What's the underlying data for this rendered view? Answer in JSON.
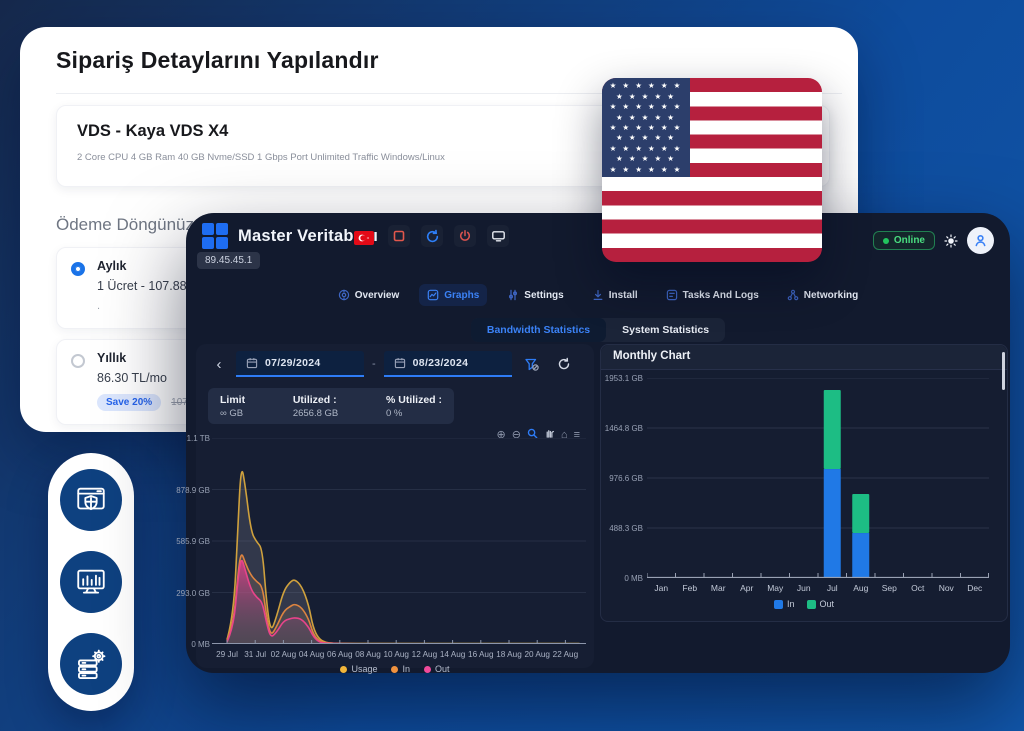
{
  "colors": {
    "accent_blue": "#2e7cf6",
    "active_tab_blue": "#3b82f6",
    "online_green": "#22c55e",
    "bar_in_blue": "#2079e6",
    "bar_out_green": "#1dbd84",
    "usage_yellow": "#f2b63a",
    "in_orange": "#f0923f",
    "out_pink": "#f04a9b"
  },
  "order_card": {
    "title": "Sipariş Detaylarını Yapılandır",
    "product_name": "VDS - Kaya VDS X4",
    "product_specs": "2 Core CPU 4 GB Ram 40 GB Nvme/SSD 1 Gbps Port Unlimited Traffic Windows/Linux",
    "billing_heading": "Ödeme Döngünüz",
    "options": [
      {
        "label": "Aylık",
        "price": "1 Ücret - 107.88 TL",
        "note": ".",
        "selected": true
      },
      {
        "label": "Yıllık",
        "price": "86.30 TL/mo",
        "badge": "Save 20%",
        "old_price": "107.88",
        "selected": false
      }
    ]
  },
  "dashboard": {
    "window_title": "Master Veritabanı",
    "ip_address": "89.45.45.1",
    "status_label": "Online",
    "nav_tabs": [
      {
        "label": "Overview",
        "icon": "overview",
        "active": false
      },
      {
        "label": "Graphs",
        "icon": "graphs",
        "active": true
      },
      {
        "label": "Settings",
        "icon": "settings",
        "active": false
      },
      {
        "label": "Install",
        "icon": "install",
        "active": false
      },
      {
        "label": "Tasks And Logs",
        "icon": "tasks",
        "active": false
      },
      {
        "label": "Networking",
        "icon": "networking",
        "active": false
      }
    ],
    "sub_tabs": [
      {
        "label": "Bandwidth Statistics",
        "active": true
      },
      {
        "label": "System Statistics",
        "active": false
      }
    ],
    "date_filter": {
      "from": "07/29/2024",
      "to": "08/23/2024",
      "separator": "-"
    },
    "usage_summary": [
      {
        "label": "Limit",
        "value": "∞ GB"
      },
      {
        "label": "Utilized :",
        "value": "2656.8 GB"
      },
      {
        "label": "% Utilized :",
        "value": "0 %"
      }
    ],
    "glyphs": {
      "chevron_left": "‹",
      "zoom_in": "⊕",
      "zoom_out": "⊖",
      "home": "⌂",
      "menu": "≡"
    }
  },
  "chart_data": [
    {
      "id": "bandwidth",
      "type": "area",
      "title": "Bandwidth Statistics",
      "x_ticks": [
        "29 Jul",
        "31 Jul",
        "02 Aug",
        "04 Aug",
        "06 Aug",
        "08 Aug",
        "10 Aug",
        "12 Aug",
        "14 Aug",
        "16 Aug",
        "18 Aug",
        "20 Aug",
        "22 Aug"
      ],
      "y_ticks": [
        "1.1 TB",
        "878.9 GB",
        "585.9 GB",
        "293.0 GB",
        "0 MB"
      ],
      "y_max_gb": 1171.9,
      "x_domain_days": 25,
      "grid": true,
      "legend_position": "bottom",
      "series": [
        {
          "name": "Usage",
          "color": "#cfa13d",
          "fill": "rgba(148,152,166,0.22)",
          "points": [
            [
              0,
              25
            ],
            [
              0.45,
              150
            ],
            [
              0.75,
              620
            ],
            [
              1.0,
              1030
            ],
            [
              1.3,
              900
            ],
            [
              1.7,
              640
            ],
            [
              2.1,
              580
            ],
            [
              2.5,
              545
            ],
            [
              2.8,
              240
            ],
            [
              3.1,
              65
            ],
            [
              3.5,
              150
            ],
            [
              4.0,
              300
            ],
            [
              4.5,
              355
            ],
            [
              4.8,
              368
            ],
            [
              5.3,
              330
            ],
            [
              5.8,
              220
            ],
            [
              6.1,
              95
            ],
            [
              6.5,
              30
            ],
            [
              7,
              8
            ],
            [
              7.5,
              4
            ],
            [
              8.5,
              3
            ],
            [
              10,
              2
            ],
            [
              13,
              2
            ],
            [
              16,
              2
            ],
            [
              20,
              2
            ],
            [
              25,
              2
            ]
          ]
        },
        {
          "name": "In",
          "color": "#dd8440",
          "fill": "rgba(170,130,95,0.22)",
          "points": [
            [
              0,
              18
            ],
            [
              0.45,
              110
            ],
            [
              0.75,
              380
            ],
            [
              1.0,
              530
            ],
            [
              1.3,
              460
            ],
            [
              1.7,
              390
            ],
            [
              2.1,
              355
            ],
            [
              2.5,
              330
            ],
            [
              2.8,
              160
            ],
            [
              3.1,
              45
            ],
            [
              3.5,
              95
            ],
            [
              4.0,
              185
            ],
            [
              4.5,
              215
            ],
            [
              4.8,
              228
            ],
            [
              5.3,
              208
            ],
            [
              5.8,
              140
            ],
            [
              6.1,
              60
            ],
            [
              6.5,
              18
            ],
            [
              7,
              5
            ],
            [
              8.5,
              2
            ],
            [
              12,
              1
            ],
            [
              18,
              1
            ],
            [
              25,
              1
            ]
          ]
        },
        {
          "name": "Out",
          "color": "#e8448a",
          "fill": "url(#outGrad)",
          "points": [
            [
              0,
              12
            ],
            [
              0.45,
              90
            ],
            [
              0.75,
              350
            ],
            [
              1.0,
              500
            ],
            [
              1.3,
              420
            ],
            [
              1.7,
              310
            ],
            [
              2.1,
              265
            ],
            [
              2.5,
              240
            ],
            [
              2.8,
              120
            ],
            [
              3.1,
              35
            ],
            [
              3.5,
              65
            ],
            [
              4.0,
              130
            ],
            [
              4.5,
              145
            ],
            [
              4.8,
              150
            ],
            [
              5.3,
              142
            ],
            [
              5.8,
              95
            ],
            [
              6.1,
              45
            ],
            [
              6.5,
              12
            ],
            [
              7,
              3
            ],
            [
              8.5,
              1
            ],
            [
              12,
              1
            ],
            [
              18,
              1
            ],
            [
              25,
              1
            ]
          ]
        }
      ],
      "legend": [
        {
          "label": "Usage",
          "color": "#f2b63a"
        },
        {
          "label": "In",
          "color": "#f0923f"
        },
        {
          "label": "Out",
          "color": "#f04a9b"
        }
      ]
    },
    {
      "id": "monthly",
      "type": "stacked-bar",
      "title": "Monthly Chart",
      "categories": [
        "Jan",
        "Feb",
        "Mar",
        "Apr",
        "May",
        "Jun",
        "Jul",
        "Aug",
        "Sep",
        "Oct",
        "Nov",
        "Dec"
      ],
      "y_ticks": [
        "1953.1 GB",
        "1464.8 GB",
        "976.6 GB",
        "488.3 GB",
        "0 MB"
      ],
      "y_max_gb": 1953.1,
      "grid": true,
      "legend_position": "bottom",
      "series": [
        {
          "name": "In",
          "color": "#2079e6",
          "values": [
            0,
            0,
            0,
            0,
            0,
            0,
            1064,
            439,
            0,
            0,
            0,
            0
          ]
        },
        {
          "name": "Out",
          "color": "#1dbd84",
          "values": [
            0,
            0,
            0,
            0,
            0,
            0,
            772,
            381,
            0,
            0,
            0,
            0
          ]
        }
      ]
    }
  ]
}
